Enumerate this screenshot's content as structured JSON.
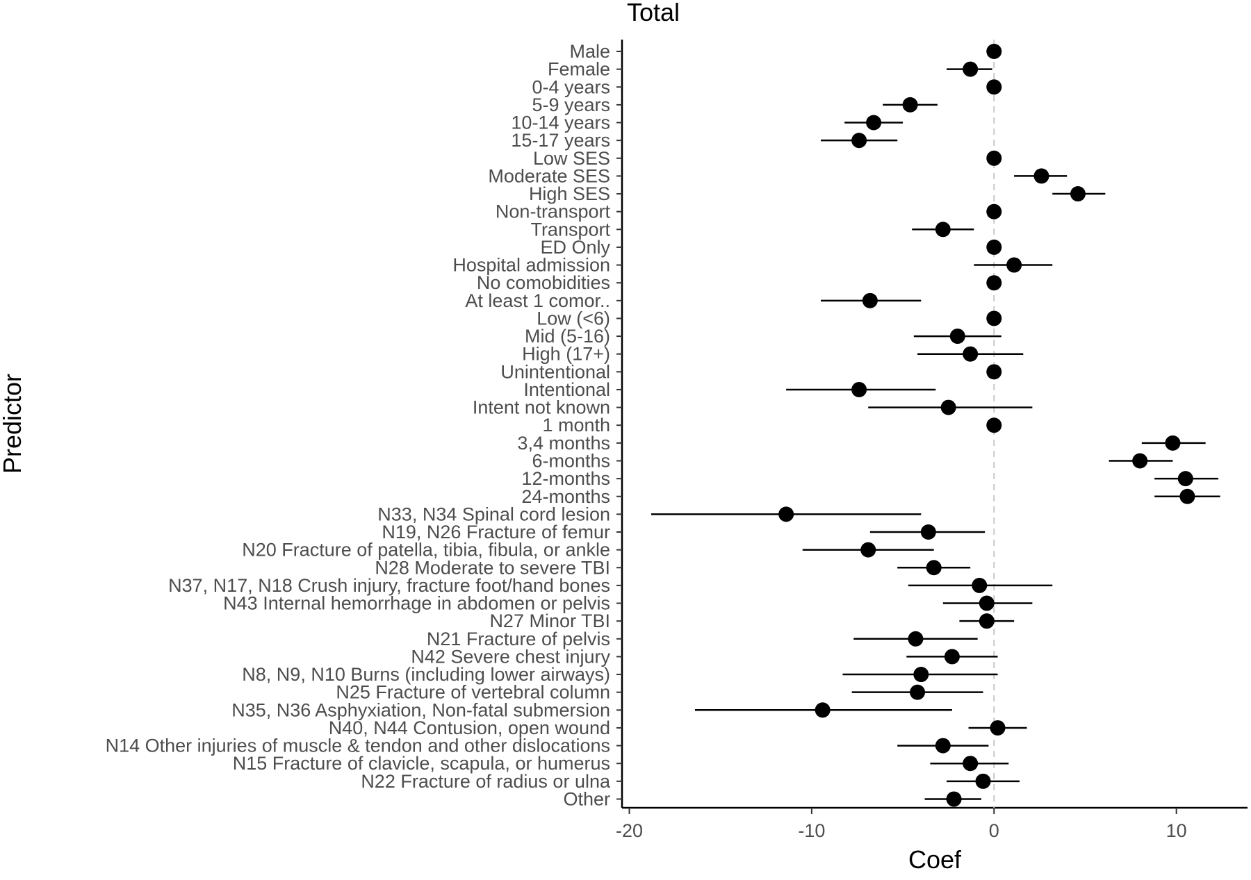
{
  "chart_data": {
    "type": "scatter",
    "title": "Total",
    "xlabel": "Coef",
    "ylabel": "Predictor",
    "xlim": [
      -20.4,
      13.9
    ],
    "xticks": [
      -20,
      -10,
      0,
      10
    ],
    "xtick_labels": [
      "-20",
      "-10",
      "0",
      "10"
    ],
    "reference_line": 0,
    "grid": false,
    "categories": [
      "Male",
      "Female",
      "0-4 years",
      "5-9 years",
      "10-14 years",
      "15-17 years",
      "Low SES",
      "Moderate SES",
      "High SES",
      "Non-transport",
      "Transport",
      "ED Only",
      "Hospital admission",
      "No comobidities",
      "At least 1 comor..",
      "Low (<6)",
      "Mid (5-16)",
      "High (17+)",
      "Unintentional",
      "Intentional",
      "Intent not known",
      "1 month",
      "3,4 months",
      "6-months",
      "12-months",
      "24-months",
      "N33, N34 Spinal cord lesion",
      "N19, N26 Fracture of femur",
      "N20 Fracture of patella, tibia, fibula, or ankle",
      "N28 Moderate to severe TBI",
      "N37, N17, N18 Crush injury, fracture foot/hand bones",
      "N43 Internal hemorrhage in abdomen or pelvis",
      "N27 Minor TBI",
      "N21 Fracture of pelvis",
      "N42 Severe chest injury",
      "N8, N9, N10 Burns (including lower airways)",
      "N25 Fracture of vertebral column",
      "N35, N36 Asphyxiation, Non-fatal submersion",
      "N40, N44 Contusion, open wound",
      "N14 Other injuries of muscle & tendon and other dislocations",
      "N15 Fracture of clavicle, scapula, or humerus",
      "N22 Fracture of radius or ulna",
      "Other"
    ],
    "values": [
      0,
      -1.3,
      0,
      -4.6,
      -6.6,
      -7.4,
      0,
      2.6,
      4.6,
      0,
      -2.8,
      0,
      1.1,
      0,
      -6.8,
      0,
      -2,
      -1.3,
      0,
      -7.4,
      -2.5,
      0,
      9.8,
      8,
      10.5,
      10.6,
      -11.4,
      -3.6,
      -6.9,
      -3.3,
      -0.8,
      -0.4,
      -0.4,
      -4.3,
      -2.3,
      -4,
      -4.2,
      -9.4,
      0.2,
      -2.8,
      -1.3,
      -0.6,
      -2.2
    ],
    "lower": [
      0,
      -2.6,
      0,
      -6.1,
      -8.2,
      -9.5,
      0,
      1.1,
      3.2,
      0,
      -4.5,
      0,
      -1.1,
      0,
      -9.5,
      0,
      -4.4,
      -4.2,
      0,
      -11.4,
      -6.9,
      0,
      8.1,
      6.3,
      8.8,
      8.8,
      -18.8,
      -6.8,
      -10.5,
      -5.3,
      -4.7,
      -2.8,
      -1.9,
      -7.7,
      -4.8,
      -8.3,
      -7.8,
      -16.4,
      -1.4,
      -5.3,
      -3.5,
      -2.6,
      -3.8
    ],
    "upper": [
      0,
      -0.1,
      0,
      -3.1,
      -5,
      -5.3,
      0,
      4,
      6.1,
      0,
      -1.1,
      0,
      3.2,
      0,
      -4,
      0,
      0.4,
      1.6,
      0,
      -3.2,
      2.1,
      0,
      11.6,
      9.8,
      12.3,
      12.4,
      -4,
      -0.5,
      -3.3,
      -1.3,
      3.2,
      2.1,
      1.1,
      -0.9,
      0.2,
      0.2,
      -0.6,
      -2.3,
      1.8,
      -0.3,
      0.8,
      1.4,
      -0.7
    ]
  }
}
